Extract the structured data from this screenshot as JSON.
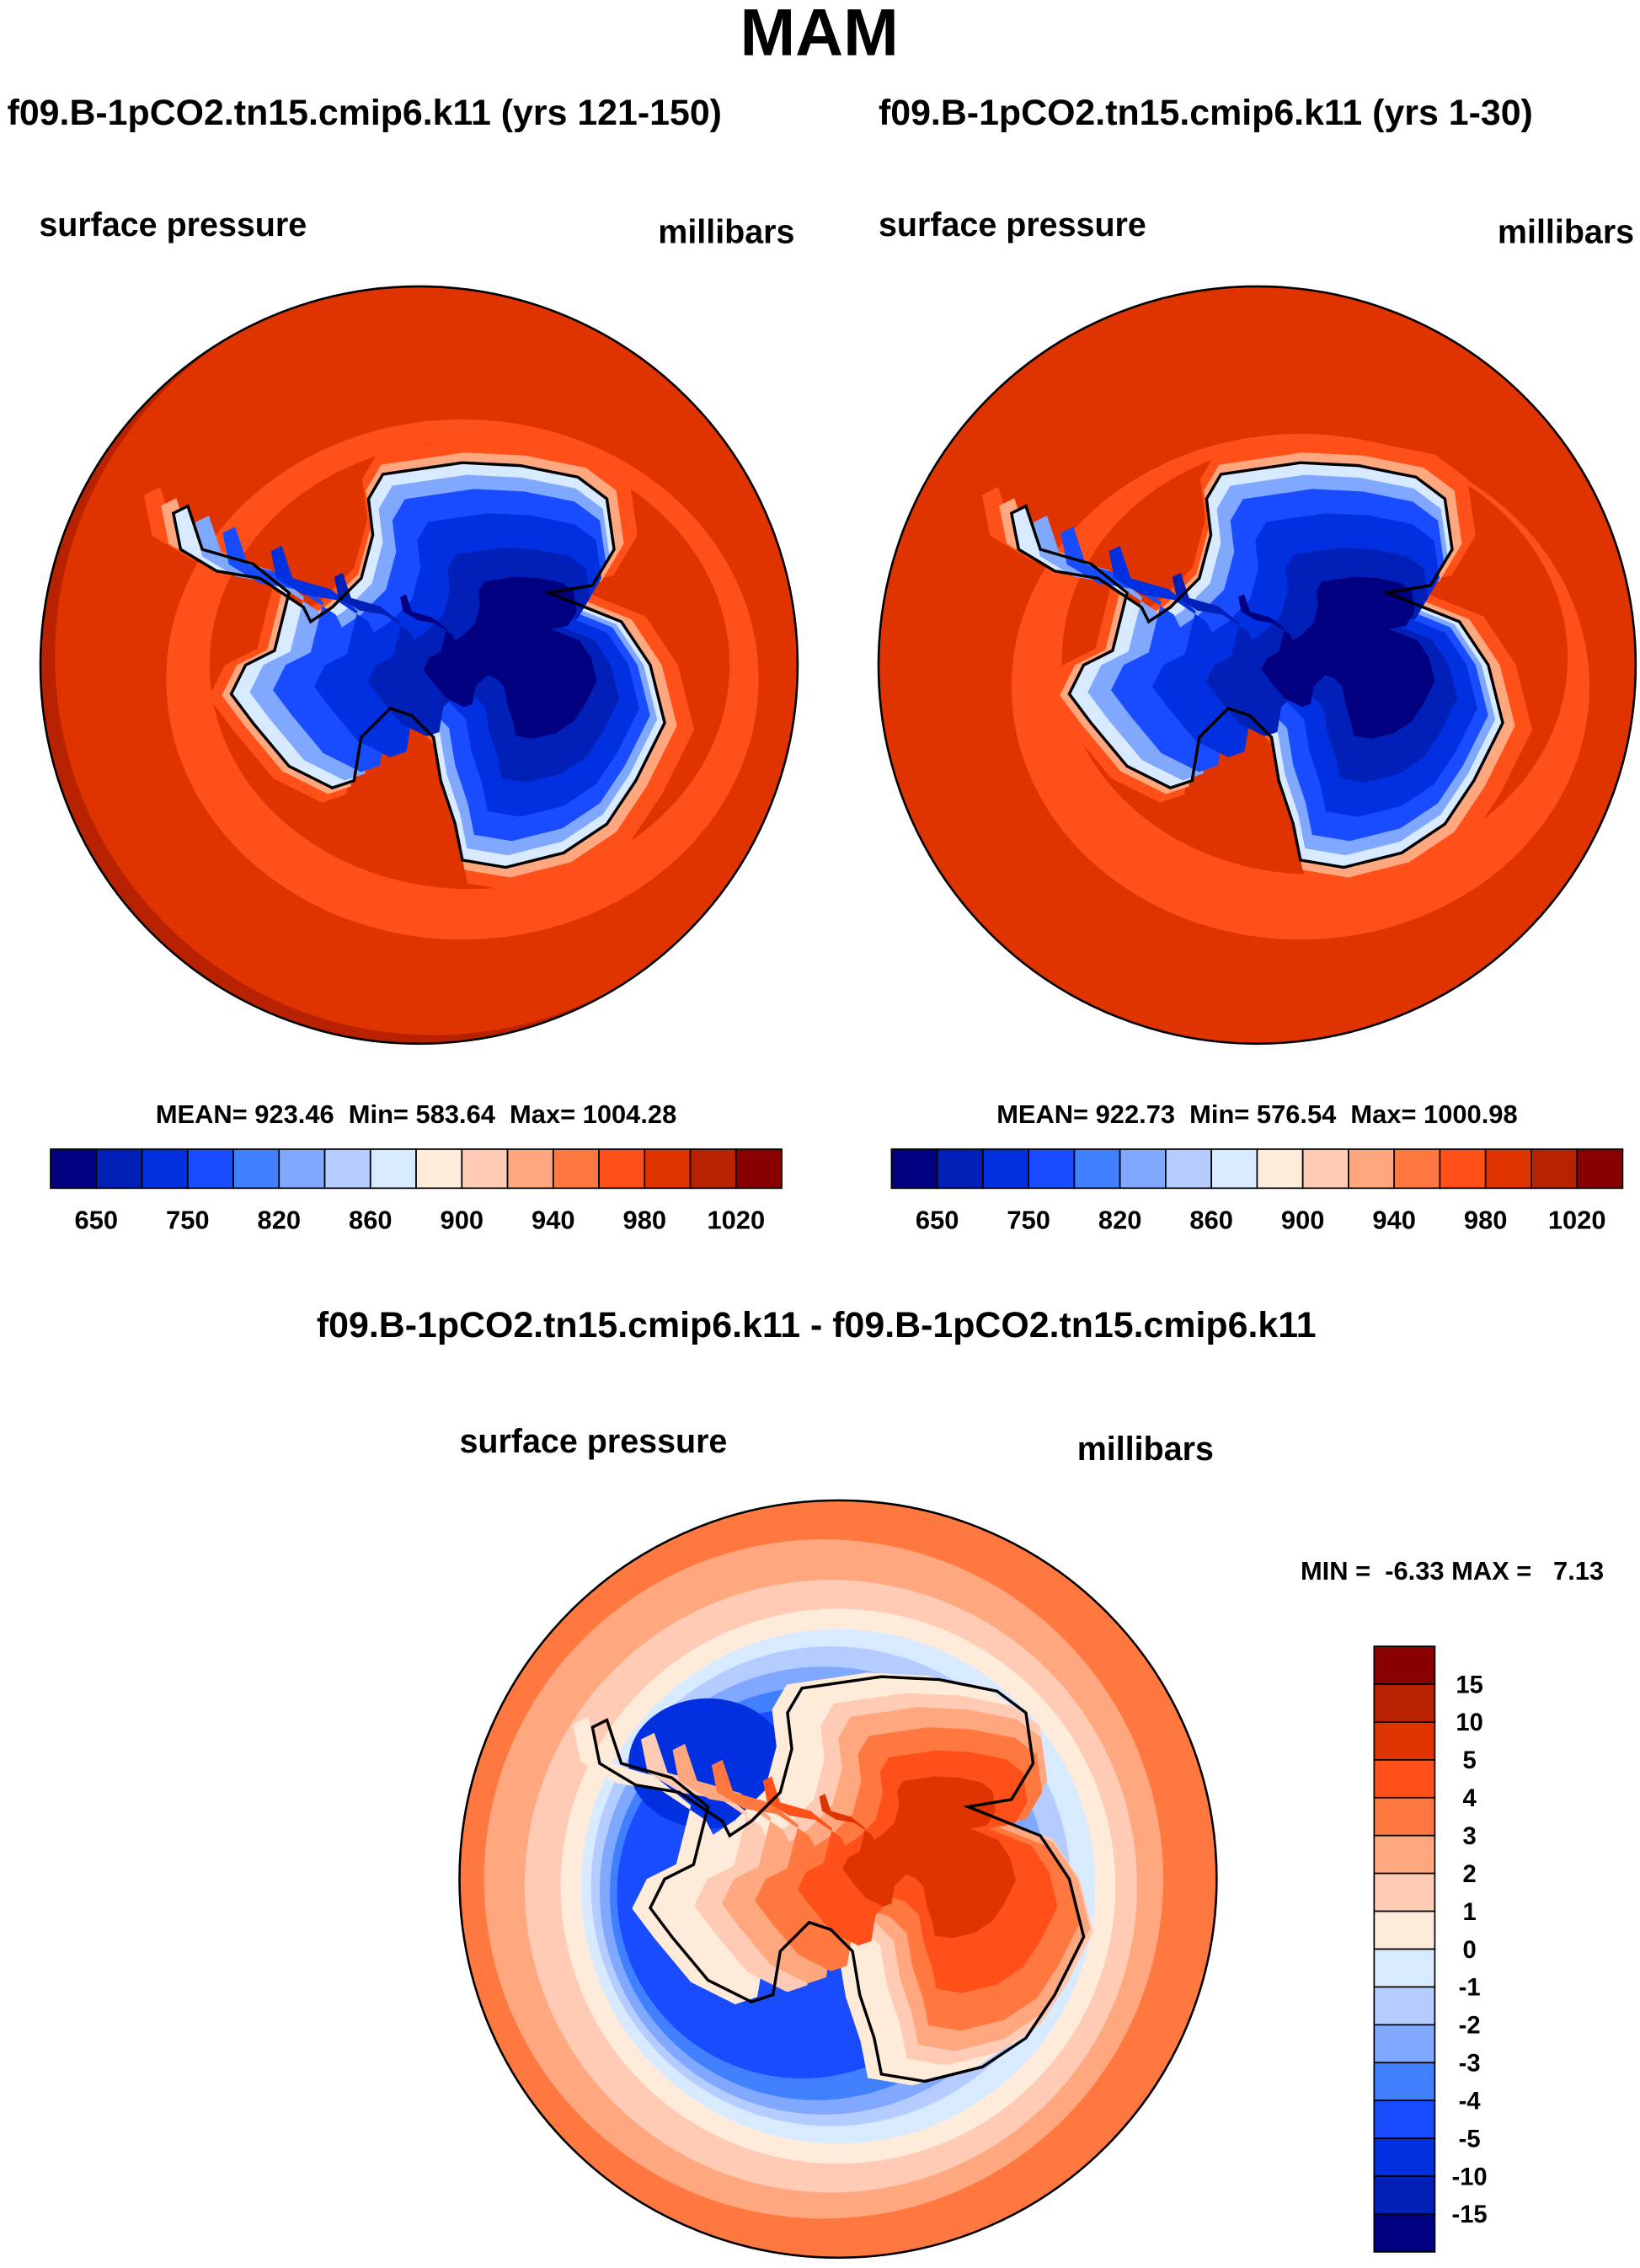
{
  "title": "MAM",
  "panels": [
    {
      "case_title": "f09.B-1pCO2.tn15.cmip6.k11 (yrs 121-150)",
      "variable": "surface pressure",
      "units": "millibars",
      "stats": "MEAN= 923.46  Min= 583.64  Max= 1004.28"
    },
    {
      "case_title": "f09.B-1pCO2.tn15.cmip6.k11 (yrs 1-30)",
      "variable": "surface pressure",
      "units": "millibars",
      "stats": "MEAN= 922.73  Min= 576.54  Max= 1000.98"
    }
  ],
  "diff": {
    "case_title": "f09.B-1pCO2.tn15.cmip6.k11 - f09.B-1pCO2.tn15.cmip6.k11",
    "variable": "surface pressure",
    "units": "millibars",
    "minmax": "MIN =  -6.33 MAX =   7.13"
  },
  "colorbar": {
    "colors": [
      "#000080",
      "#0020b8",
      "#0030e0",
      "#1a4cff",
      "#4080ff",
      "#80a8ff",
      "#b4ccff",
      "#d8eaff",
      "#ffebd9",
      "#ffcbb4",
      "#ffa880",
      "#ff7840",
      "#ff501a",
      "#e03400",
      "#b82200",
      "#880000"
    ],
    "labels": [
      "650",
      "750",
      "820",
      "860",
      "900",
      "940",
      "980",
      "1020"
    ]
  },
  "diff_colorbar": {
    "labels": [
      "15",
      "10",
      "5",
      "4",
      "3",
      "2",
      "1",
      "0",
      "-1",
      "-2",
      "-3",
      "-4",
      "-5",
      "-10",
      "-15"
    ]
  }
}
